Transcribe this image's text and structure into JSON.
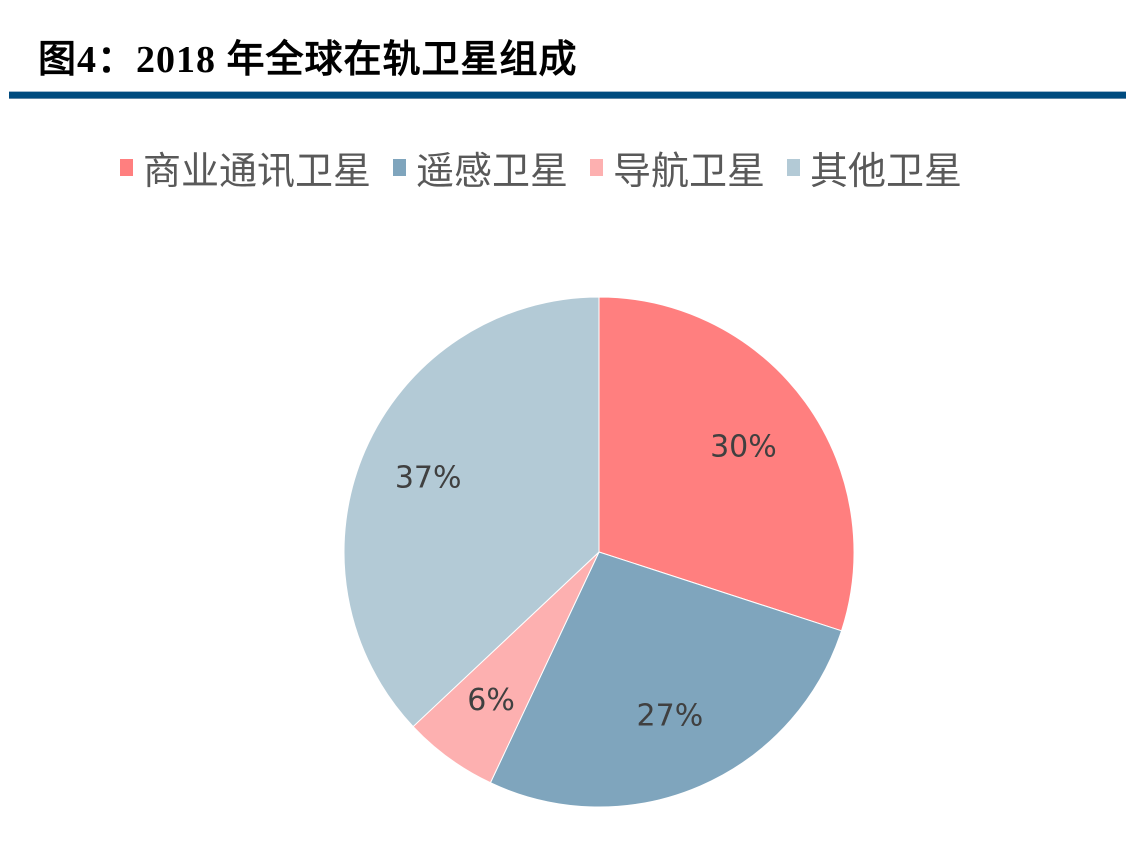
{
  "figure": {
    "title": "图4：2018 年全球在轨卫星组成",
    "rule_color": "#004b7f"
  },
  "legend": {
    "items": [
      {
        "label": "商业通讯卫星",
        "color": "#ff7f7f"
      },
      {
        "label": "遥感卫星",
        "color": "#7fa5bd"
      },
      {
        "label": "导航卫星",
        "color": "#fdb0b0"
      },
      {
        "label": "其他卫星",
        "color": "#b3cad6"
      }
    ]
  },
  "chart_data": {
    "type": "pie",
    "title": "2018 年全球在轨卫星组成",
    "categories": [
      "商业通讯卫星",
      "遥感卫星",
      "导航卫星",
      "其他卫星"
    ],
    "values": [
      30,
      27,
      6,
      37
    ],
    "labels": [
      "30%",
      "27%",
      "6%",
      "37%"
    ],
    "colors": [
      "#ff7f7f",
      "#7fa5bd",
      "#fdb0b0",
      "#b3cad6"
    ],
    "start_angle": "12 o'clock",
    "direction": "clockwise",
    "legend_position": "top"
  }
}
